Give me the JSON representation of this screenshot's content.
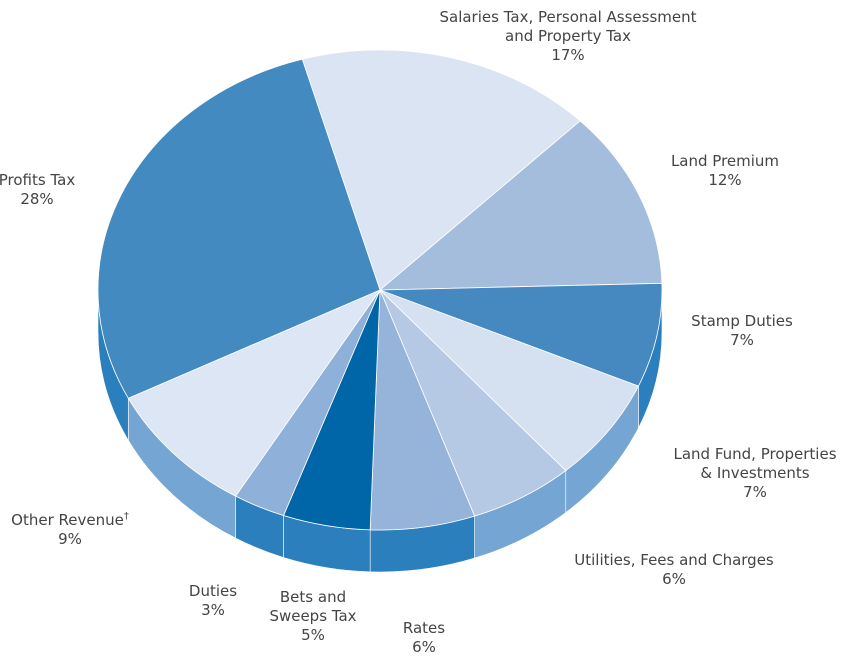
{
  "chart_data": {
    "type": "pie",
    "title": "",
    "series": [
      {
        "name": "",
        "slices": [
          {
            "label": "Salaries Tax, Personal Assessment and Property Tax",
            "value": 17,
            "text": "17%",
            "color": "#dbe4f3"
          },
          {
            "label": "Land Premium",
            "value": 12,
            "text": "12%",
            "color": "#a5bddc"
          },
          {
            "label": "Stamp Duties",
            "value": 7,
            "text": "7%",
            "color": "#4689c0"
          },
          {
            "label": "Land Fund, Properties & Investments",
            "value": 7,
            "text": "7%",
            "color": "#d5e0f1"
          },
          {
            "label": "Utilities, Fees and Charges",
            "value": 6,
            "text": "6%",
            "color": "#b6c9e4"
          },
          {
            "label": "Rates",
            "value": 6,
            "text": "6%",
            "color": "#96b4d9"
          },
          {
            "label": "Bets and Sweeps Tax",
            "value": 5,
            "text": "5%",
            "color": "#0066a8"
          },
          {
            "label": "Duties",
            "value": 3,
            "text": "3%",
            "color": "#8fb0d8"
          },
          {
            "label": "Other Revenue†",
            "value": 9,
            "text": "9%",
            "color": "#dce6f4"
          },
          {
            "label": "Profits Tax",
            "value": 28,
            "text": "28%",
            "color": "#428ac0"
          }
        ]
      }
    ],
    "side_color": "#2c7fbd",
    "side_color_alt": "#75a5d2"
  }
}
